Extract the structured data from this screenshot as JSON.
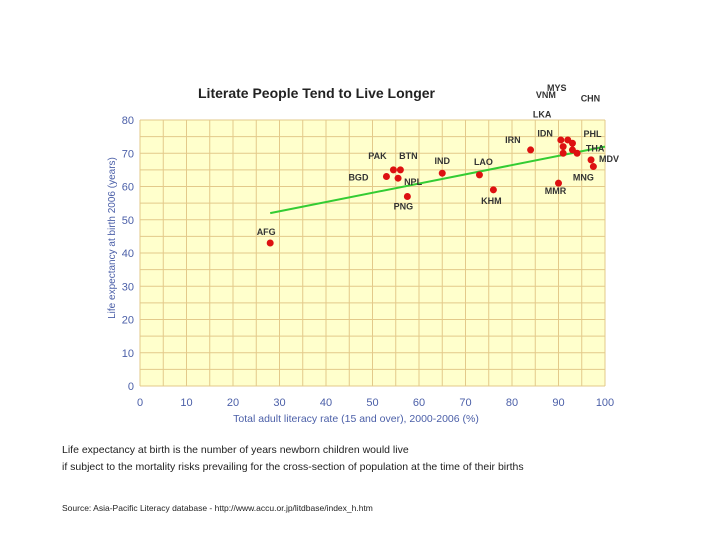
{
  "chart_data": {
    "type": "scatter",
    "title": "Literate People Tend to Live Longer",
    "xlabel": "Total adult literacy rate (15 and over), 2000-2006 (%)",
    "ylabel": "Life expectancy at birth 2006 (years)",
    "xlim": [
      0,
      100
    ],
    "ylim": [
      0,
      80
    ],
    "xticks": [
      "0",
      "10",
      "20",
      "30",
      "40",
      "50",
      "60",
      "70",
      "80",
      "90",
      "100"
    ],
    "yticks": [
      "0",
      "10",
      "20",
      "30",
      "40",
      "50",
      "60",
      "70",
      "80"
    ],
    "colors": {
      "plot_bg": "#ffffcc",
      "grid": "#e3c98a",
      "point": "#dd1111",
      "trend": "#33cc33",
      "axis_text": "#4b5fa8"
    },
    "trend_line": {
      "x": [
        28,
        100
      ],
      "y": [
        52,
        72
      ]
    },
    "points": [
      {
        "label": "AFG",
        "x": 28,
        "y": 43
      },
      {
        "label": "BGD",
        "x": 53,
        "y": 63
      },
      {
        "label": "PAK",
        "x": 54.5,
        "y": 65
      },
      {
        "label": "BTN",
        "x": 56,
        "y": 65
      },
      {
        "label": "NPL",
        "x": 55.5,
        "y": 62.5
      },
      {
        "label": "PNG",
        "x": 57.5,
        "y": 57
      },
      {
        "label": "IND",
        "x": 65,
        "y": 64
      },
      {
        "label": "LAO",
        "x": 73,
        "y": 63.5
      },
      {
        "label": "KHM",
        "x": 76,
        "y": 59
      },
      {
        "label": "IRN",
        "x": 84,
        "y": 71
      },
      {
        "label": "MMR",
        "x": 90,
        "y": 61
      },
      {
        "label": "VNM",
        "x": 90.5,
        "y": 74
      },
      {
        "label": "LKA",
        "x": 91,
        "y": 72
      },
      {
        "label": "IDN",
        "x": 91,
        "y": 70
      },
      {
        "label": "MYS",
        "x": 92,
        "y": 74
      },
      {
        "label": "CHN",
        "x": 93,
        "y": 73
      },
      {
        "label": "PHL",
        "x": 93,
        "y": 71
      },
      {
        "label": "THA",
        "x": 94,
        "y": 70
      },
      {
        "label": "MDV",
        "x": 97,
        "y": 68
      },
      {
        "label": "MNG",
        "x": 97.5,
        "y": 66
      }
    ]
  },
  "notes": {
    "line1": "Life expectancy at birth is the number of years newborn children would live",
    "line2": " if subject to the mortality risks prevailing for the cross-section of population at the time of their births"
  },
  "source": "Source: Asia-Pacific Literacy database - http://www.accu.or.jp/litdbase/index_h.htm"
}
